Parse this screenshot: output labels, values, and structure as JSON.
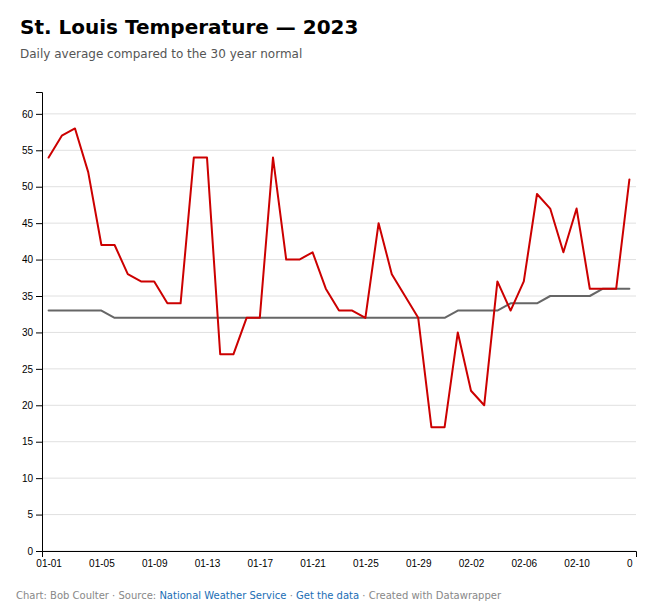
{
  "chart_data": {
    "type": "line",
    "title": "St. Louis Temperature — 2023",
    "subtitle": "Daily average compared to the 30 year normal",
    "categories": [
      "01-01",
      null,
      null,
      null,
      "01-05",
      null,
      null,
      null,
      "01-09",
      null,
      null,
      null,
      "01-13",
      null,
      null,
      null,
      "01-17",
      null,
      null,
      null,
      "01-21",
      null,
      null,
      null,
      "01-25",
      null,
      null,
      null,
      "01-29",
      null,
      null,
      null,
      "02-02",
      null,
      null,
      null,
      "02-06",
      null,
      null,
      null,
      "02-10",
      null,
      null,
      null,
      "0"
    ],
    "series": [
      {
        "color": "#cc0000",
        "values": [
          54,
          57,
          58,
          52,
          42,
          42,
          38,
          37,
          37,
          34,
          34,
          54,
          54,
          27,
          27,
          32,
          32,
          54,
          40,
          40,
          41,
          36,
          33,
          33,
          32,
          45,
          38,
          35,
          32,
          17,
          17,
          30,
          22,
          20,
          37,
          33,
          37,
          49,
          47,
          41,
          47,
          36,
          36,
          36,
          51
        ]
      },
      {
        "color": "#666666",
        "values": [
          33,
          33,
          33,
          33,
          33,
          32,
          32,
          32,
          32,
          32,
          32,
          32,
          32,
          32,
          32,
          32,
          32,
          32,
          32,
          32,
          32,
          32,
          32,
          32,
          32,
          32,
          32,
          32,
          32,
          32,
          32,
          33,
          33,
          33,
          33,
          34,
          34,
          34,
          35,
          35,
          35,
          35,
          36,
          36,
          36
        ]
      }
    ],
    "ylim": [
      0,
      63
    ],
    "yticks": [
      0,
      5,
      10,
      15,
      20,
      25,
      30,
      35,
      40,
      45,
      50,
      55,
      60
    ],
    "grid": true,
    "annotations": [
      {
        "text": "Chart: Bob Coulter",
        "color": "#888888"
      },
      {
        "text": " · Source: ",
        "color": "#888888"
      },
      {
        "text": "National Weather Service",
        "color": "#1a6eb5"
      },
      {
        "text": " · ",
        "color": "#888888"
      },
      {
        "text": "Get the data",
        "color": "#1a6eb5"
      },
      {
        "text": " · Created with Datawrapper",
        "color": "#888888"
      }
    ]
  }
}
